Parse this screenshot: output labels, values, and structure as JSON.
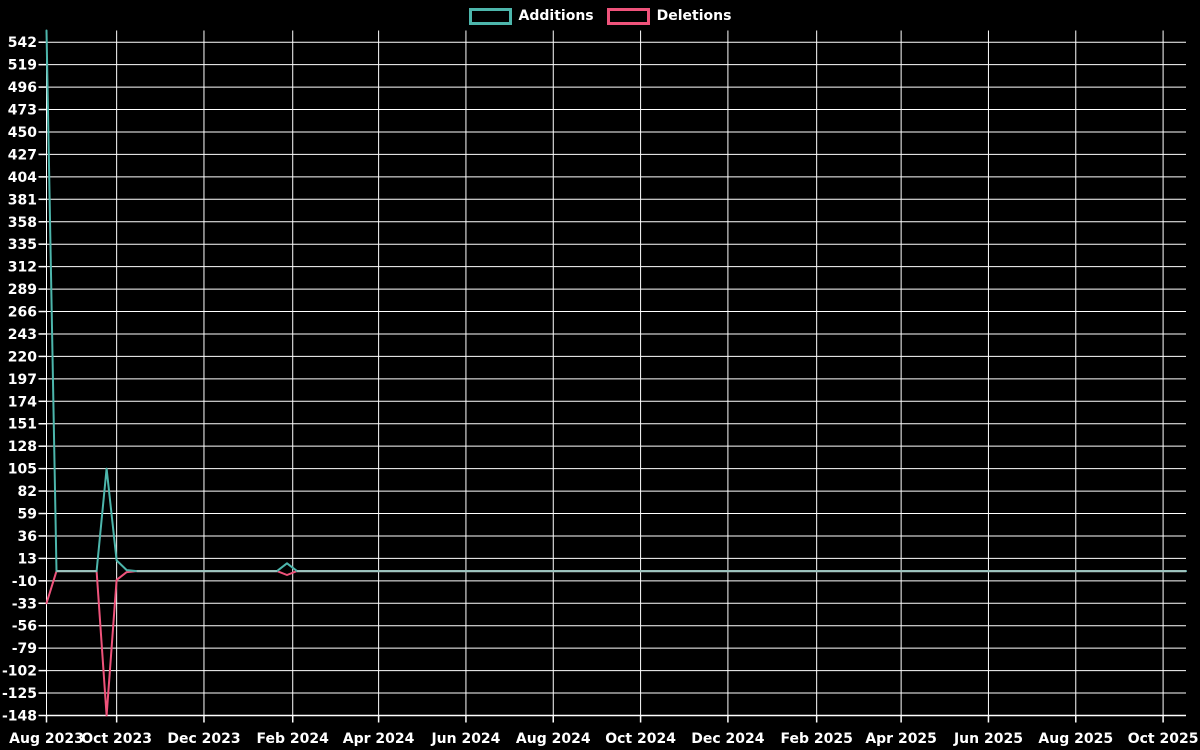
{
  "legend": {
    "items": [
      {
        "label": "Additions"
      },
      {
        "label": "Deletions"
      }
    ]
  },
  "chart_data": {
    "type": "line",
    "title": "",
    "background": "#000000",
    "grid": true,
    "grid_color": "#ffffff",
    "text_color": "#ffffff",
    "legend_position": "top-center",
    "overlap_line_color": "#9fc5bf",
    "x_axis": {
      "unit": "days since 2023-08-13",
      "domain": [
        0,
        796
      ],
      "ticks": [
        {
          "label": "Aug 2023",
          "day": 0
        },
        {
          "label": "Oct 2023",
          "day": 49
        },
        {
          "label": "Dec 2023",
          "day": 110
        },
        {
          "label": "Feb 2024",
          "day": 172
        },
        {
          "label": "Apr 2024",
          "day": 232
        },
        {
          "label": "Jun 2024",
          "day": 293
        },
        {
          "label": "Aug 2024",
          "day": 354
        },
        {
          "label": "Oct 2024",
          "day": 415
        },
        {
          "label": "Dec 2024",
          "day": 476
        },
        {
          "label": "Feb 2025",
          "day": 538
        },
        {
          "label": "Apr 2025",
          "day": 597
        },
        {
          "label": "Jun 2025",
          "day": 658
        },
        {
          "label": "Aug 2025",
          "day": 719
        },
        {
          "label": "Oct 2025",
          "day": 780
        }
      ]
    },
    "y_axis": {
      "domain": [
        -148,
        554
      ],
      "tick_step": 23,
      "ticks": [
        542,
        519,
        496,
        473,
        450,
        427,
        404,
        381,
        358,
        335,
        312,
        289,
        266,
        243,
        220,
        197,
        174,
        151,
        128,
        105,
        82,
        59,
        36,
        13,
        -10,
        -33,
        -56,
        -79,
        -102,
        -125,
        -148
      ]
    },
    "series": [
      {
        "name": "Additions",
        "color": "#4db6ac",
        "points": [
          [
            0,
            554
          ],
          [
            7,
            0
          ],
          [
            35,
            0
          ],
          [
            42,
            105
          ],
          [
            49,
            11
          ],
          [
            56,
            1
          ],
          [
            63,
            0
          ],
          [
            161,
            0
          ],
          [
            168,
            8
          ],
          [
            175,
            0
          ],
          [
            796,
            0
          ]
        ]
      },
      {
        "name": "Deletions",
        "color": "#ef537b",
        "points": [
          [
            0,
            -33
          ],
          [
            7,
            0
          ],
          [
            35,
            0
          ],
          [
            42,
            -148
          ],
          [
            49,
            -9
          ],
          [
            56,
            -1
          ],
          [
            63,
            0
          ],
          [
            161,
            0
          ],
          [
            168,
            -4
          ],
          [
            175,
            0
          ],
          [
            796,
            0
          ]
        ]
      }
    ]
  }
}
